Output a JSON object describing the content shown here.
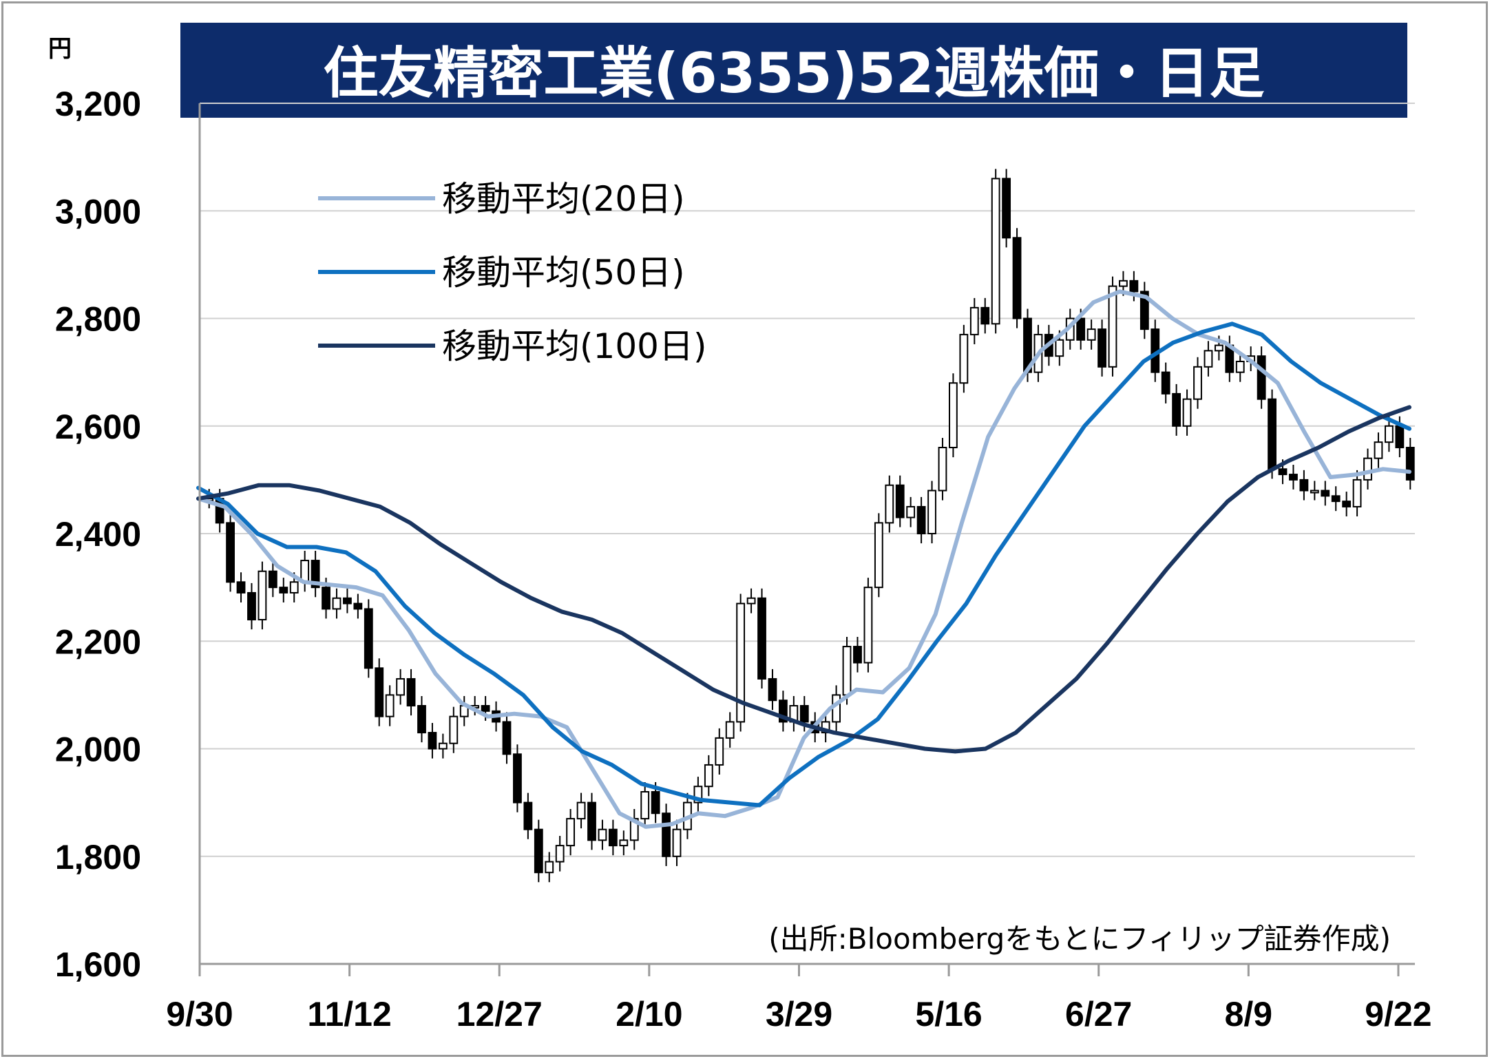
{
  "chart_data": {
    "type": "line",
    "title": "住友精密工業(6355)52週株価・日足",
    "unit_label": "円",
    "source": "(出所:Bloombergをもとにフィリップ証券作成)",
    "ylim": [
      1600,
      3200
    ],
    "yticks": [
      "1,600",
      "1,800",
      "2,000",
      "2,200",
      "2,400",
      "2,600",
      "2,800",
      "3,000",
      "3,200"
    ],
    "xticks": [
      "9/30",
      "11/12",
      "12/27",
      "2/10",
      "3/29",
      "5/16",
      "6/27",
      "8/9",
      "9/22"
    ],
    "grid": true,
    "legend_position": "top-left",
    "colors": {
      "title_bg": "#0d2c6b",
      "ma20": "#98b4d8",
      "ma50": "#0e70c0",
      "ma100": "#1a3560",
      "candle": "#000000",
      "grid": "#d0d0d0"
    },
    "series": [
      {
        "name": "移動平均(20日)",
        "color": "#98b4d8",
        "values": [
          2465,
          2450,
          2400,
          2340,
          2310,
          2305,
          2300,
          2285,
          2220,
          2140,
          2085,
          2060,
          2065,
          2060,
          2040,
          1960,
          1880,
          1855,
          1860,
          1880,
          1875,
          1890,
          1910,
          2020,
          2075,
          2110,
          2105,
          2150,
          2250,
          2420,
          2580,
          2670,
          2740,
          2780,
          2830,
          2850,
          2840,
          2800,
          2770,
          2755,
          2720,
          2680,
          2590,
          2505,
          2510,
          2520,
          2515
        ]
      },
      {
        "name": "移動平均(50日)",
        "color": "#0e70c0",
        "values": [
          2485,
          2455,
          2400,
          2375,
          2375,
          2365,
          2330,
          2265,
          2215,
          2175,
          2140,
          2100,
          2040,
          1995,
          1970,
          1935,
          1920,
          1905,
          1900,
          1895,
          1945,
          1985,
          2015,
          2055,
          2125,
          2200,
          2270,
          2360,
          2440,
          2520,
          2600,
          2660,
          2720,
          2755,
          2775,
          2790,
          2770,
          2720,
          2680,
          2650,
          2620,
          2595
        ]
      },
      {
        "name": "移動平均(100日)",
        "color": "#1a3560",
        "values": [
          2465,
          2475,
          2490,
          2490,
          2480,
          2465,
          2450,
          2420,
          2380,
          2345,
          2310,
          2280,
          2255,
          2240,
          2215,
          2180,
          2145,
          2110,
          2085,
          2065,
          2045,
          2030,
          2020,
          2010,
          2000,
          1995,
          2000,
          2030,
          2080,
          2130,
          2195,
          2265,
          2335,
          2400,
          2460,
          2505,
          2535,
          2560,
          2590,
          2615,
          2635
        ]
      }
    ],
    "price_close": [
      2465,
      2420,
      2310,
      2290,
      2240,
      2330,
      2300,
      2290,
      2310,
      2350,
      2300,
      2260,
      2280,
      2270,
      2260,
      2150,
      2060,
      2100,
      2130,
      2080,
      2030,
      2000,
      2010,
      2060,
      2080,
      2080,
      2070,
      2050,
      1990,
      1900,
      1850,
      1770,
      1790,
      1820,
      1870,
      1900,
      1830,
      1850,
      1820,
      1830,
      1870,
      1920,
      1880,
      1800,
      1850,
      1900,
      1930,
      1970,
      2020,
      2050,
      2270,
      2280,
      2130,
      2090,
      2050,
      2080,
      2050,
      2030,
      2050,
      2100,
      2190,
      2160,
      2300,
      2420,
      2490,
      2430,
      2450,
      2400,
      2480,
      2560,
      2680,
      2770,
      2820,
      2790,
      3060,
      2950,
      2800,
      2700,
      2770,
      2730,
      2760,
      2800,
      2760,
      2780,
      2710,
      2860,
      2870,
      2850,
      2780,
      2700,
      2660,
      2600,
      2650,
      2710,
      2740,
      2750,
      2700,
      2720,
      2730,
      2650,
      2520,
      2510,
      2500,
      2480,
      2480,
      2470,
      2460,
      2450,
      2500,
      2540,
      2570,
      2600,
      2560,
      2500
    ]
  }
}
